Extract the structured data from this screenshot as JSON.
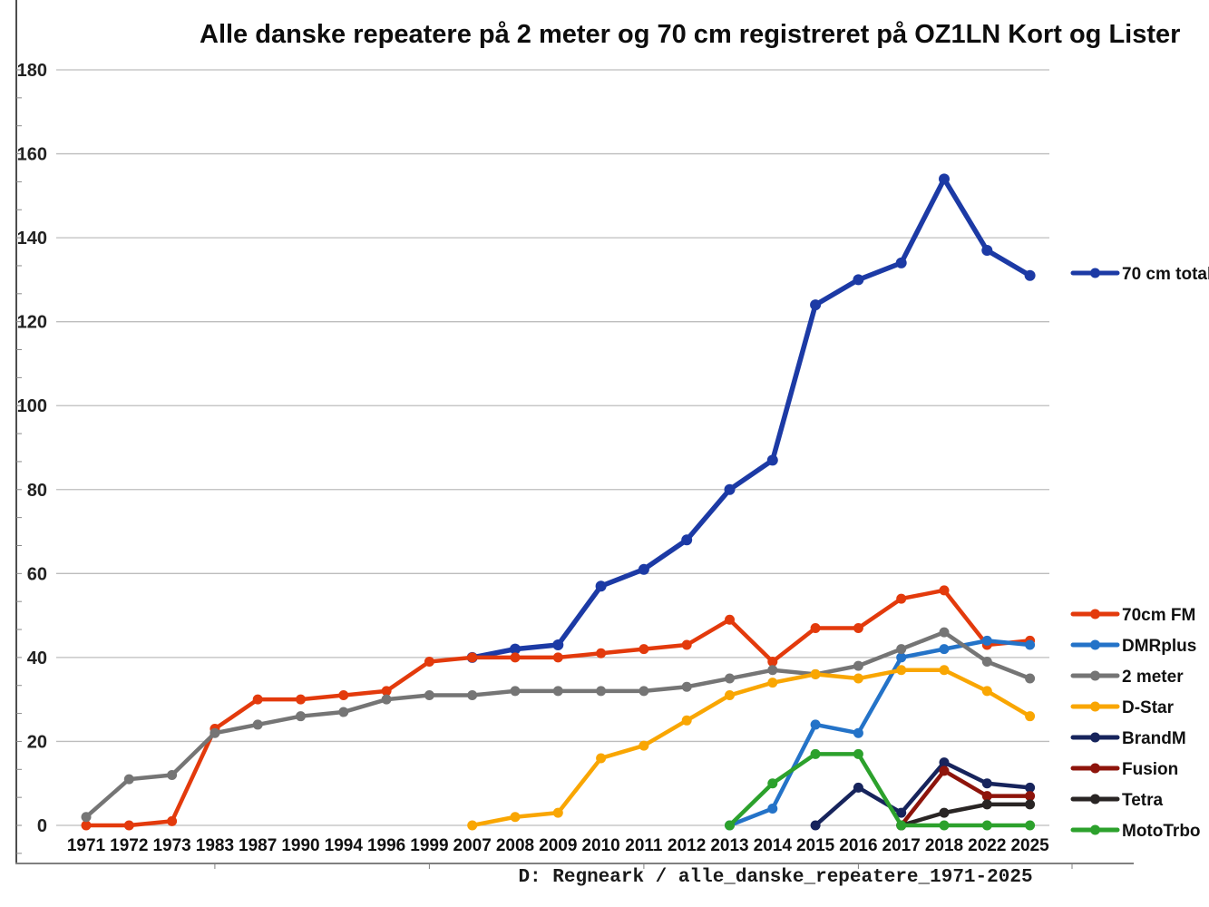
{
  "title": "Alle danske repeatere på 2 meter og 70 cm registreret på OZ1LN Kort og Lister",
  "footer": "D: Regneark / alle_danske_repeatere_1971-2025",
  "colors": {
    "grid": "#bdbdbd",
    "axis_line": "#4d4d4d",
    "frame_line": "#808080",
    "title_text": "#0d0d0d",
    "label_text": "#111111"
  },
  "chart_data": {
    "type": "line",
    "title": "Alle danske repeatere på 2 meter og 70 cm registreret på OZ1LN Kort og Lister",
    "xlabel": "",
    "ylabel": "",
    "ylim": [
      0,
      180
    ],
    "ytick_step": 20,
    "yticks": [
      0,
      20,
      40,
      60,
      80,
      100,
      120,
      140,
      160,
      180
    ],
    "grid": true,
    "legend_position": "right",
    "categories": [
      "1971",
      "1972",
      "1973",
      "1983",
      "1987",
      "1990",
      "1994",
      "1996",
      "1999",
      "2007",
      "2008",
      "2009",
      "2010",
      "2011",
      "2012",
      "2013",
      "2014",
      "2015",
      "2016",
      "2017",
      "2018",
      "2022",
      "2025"
    ],
    "series": [
      {
        "name": "70 cm total",
        "color": "#1C3AA5",
        "values": [
          null,
          null,
          null,
          null,
          null,
          null,
          null,
          null,
          null,
          40,
          42,
          43,
          57,
          61,
          68,
          80,
          87,
          124,
          130,
          134,
          154,
          137,
          131
        ]
      },
      {
        "name": "70cm FM",
        "color": "#E33A0C",
        "values": [
          0,
          0,
          1,
          23,
          30,
          30,
          31,
          32,
          39,
          40,
          40,
          40,
          41,
          42,
          43,
          49,
          39,
          47,
          47,
          54,
          56,
          43,
          44
        ]
      },
      {
        "name": "DMRplus",
        "color": "#2473C8",
        "values": [
          null,
          null,
          null,
          null,
          null,
          null,
          null,
          null,
          null,
          null,
          null,
          null,
          null,
          null,
          null,
          0,
          4,
          24,
          22,
          40,
          42,
          44,
          43
        ]
      },
      {
        "name": "2 meter",
        "color": "#757575",
        "values": [
          2,
          11,
          12,
          22,
          24,
          26,
          27,
          30,
          31,
          31,
          32,
          32,
          32,
          32,
          33,
          35,
          37,
          36,
          38,
          42,
          46,
          39,
          35
        ]
      },
      {
        "name": "D-Star",
        "color": "#F9A602",
        "values": [
          null,
          null,
          null,
          null,
          null,
          null,
          null,
          null,
          null,
          0,
          2,
          3,
          16,
          19,
          25,
          31,
          34,
          36,
          35,
          37,
          37,
          32,
          26
        ]
      },
      {
        "name": "BrandM",
        "color": "#17245C",
        "values": [
          null,
          null,
          null,
          null,
          null,
          null,
          null,
          null,
          null,
          null,
          null,
          null,
          null,
          null,
          null,
          null,
          null,
          0,
          9,
          3,
          15,
          10,
          9
        ]
      },
      {
        "name": "Fusion",
        "color": "#8E140B",
        "values": [
          null,
          null,
          null,
          null,
          null,
          null,
          null,
          null,
          null,
          null,
          null,
          null,
          null,
          null,
          null,
          null,
          null,
          null,
          null,
          0,
          13,
          7,
          7
        ]
      },
      {
        "name": "Tetra",
        "color": "#292524",
        "values": [
          null,
          null,
          null,
          null,
          null,
          null,
          null,
          null,
          null,
          null,
          null,
          null,
          null,
          null,
          null,
          null,
          null,
          null,
          null,
          0,
          3,
          5,
          5
        ]
      },
      {
        "name": "MotoTrbo",
        "color": "#2CA12C",
        "values": [
          null,
          null,
          null,
          null,
          null,
          null,
          null,
          null,
          null,
          null,
          null,
          null,
          null,
          null,
          null,
          0,
          10,
          17,
          17,
          0,
          0,
          0,
          0
        ]
      }
    ]
  }
}
